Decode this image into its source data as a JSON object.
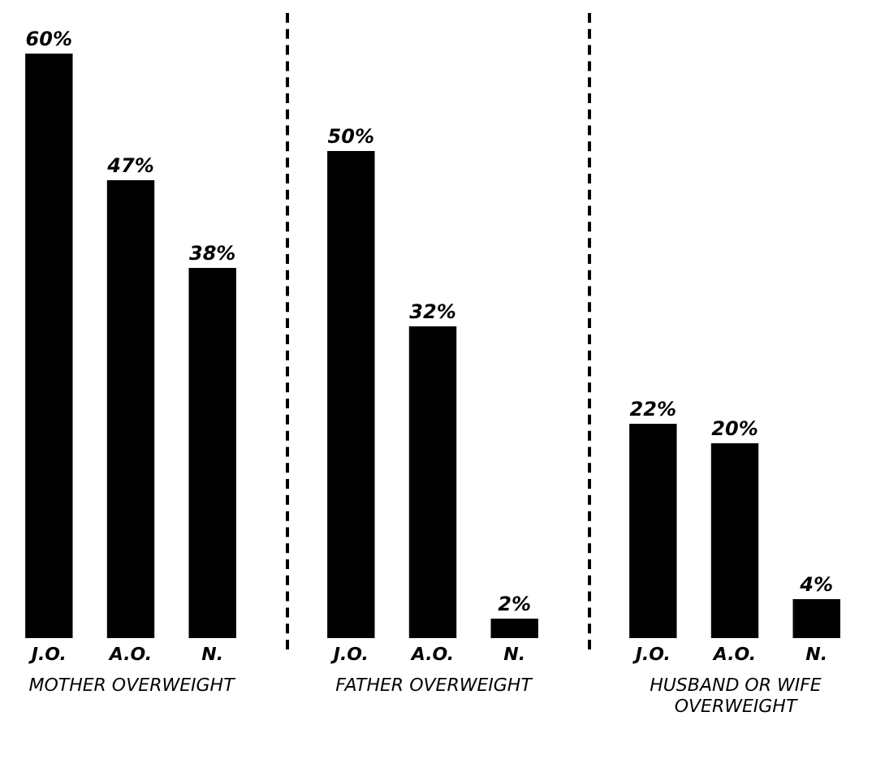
{
  "chart_data": [
    {
      "type": "bar",
      "categories": [
        "J.O.",
        "A.O.",
        "N."
      ],
      "values": [
        60,
        47,
        38
      ],
      "value_labels": [
        "60%",
        "47%",
        "38%"
      ],
      "color": "#000000",
      "xlabel": "MOTHER OVERWEIGHT",
      "tick_labels": "x"
    },
    {
      "type": "bar",
      "categories": [
        "J.O.",
        "A.O.",
        "N."
      ],
      "values": [
        50,
        32,
        2
      ],
      "value_labels": [
        "50%",
        "32%",
        "2%"
      ],
      "color": "#000000",
      "xlabel": "FATHER OVERWEIGHT",
      "tick_labels": "x"
    },
    {
      "type": "bar",
      "categories": [
        "J.O.",
        "A.O.",
        "N."
      ],
      "values": [
        22,
        20,
        4
      ],
      "value_labels": [
        "22%",
        "20%",
        "4%"
      ],
      "color": "#000000",
      "xlabel": "HUSBAND OR WIFE OVERWEIGHT",
      "tick_labels": "x"
    }
  ]
}
